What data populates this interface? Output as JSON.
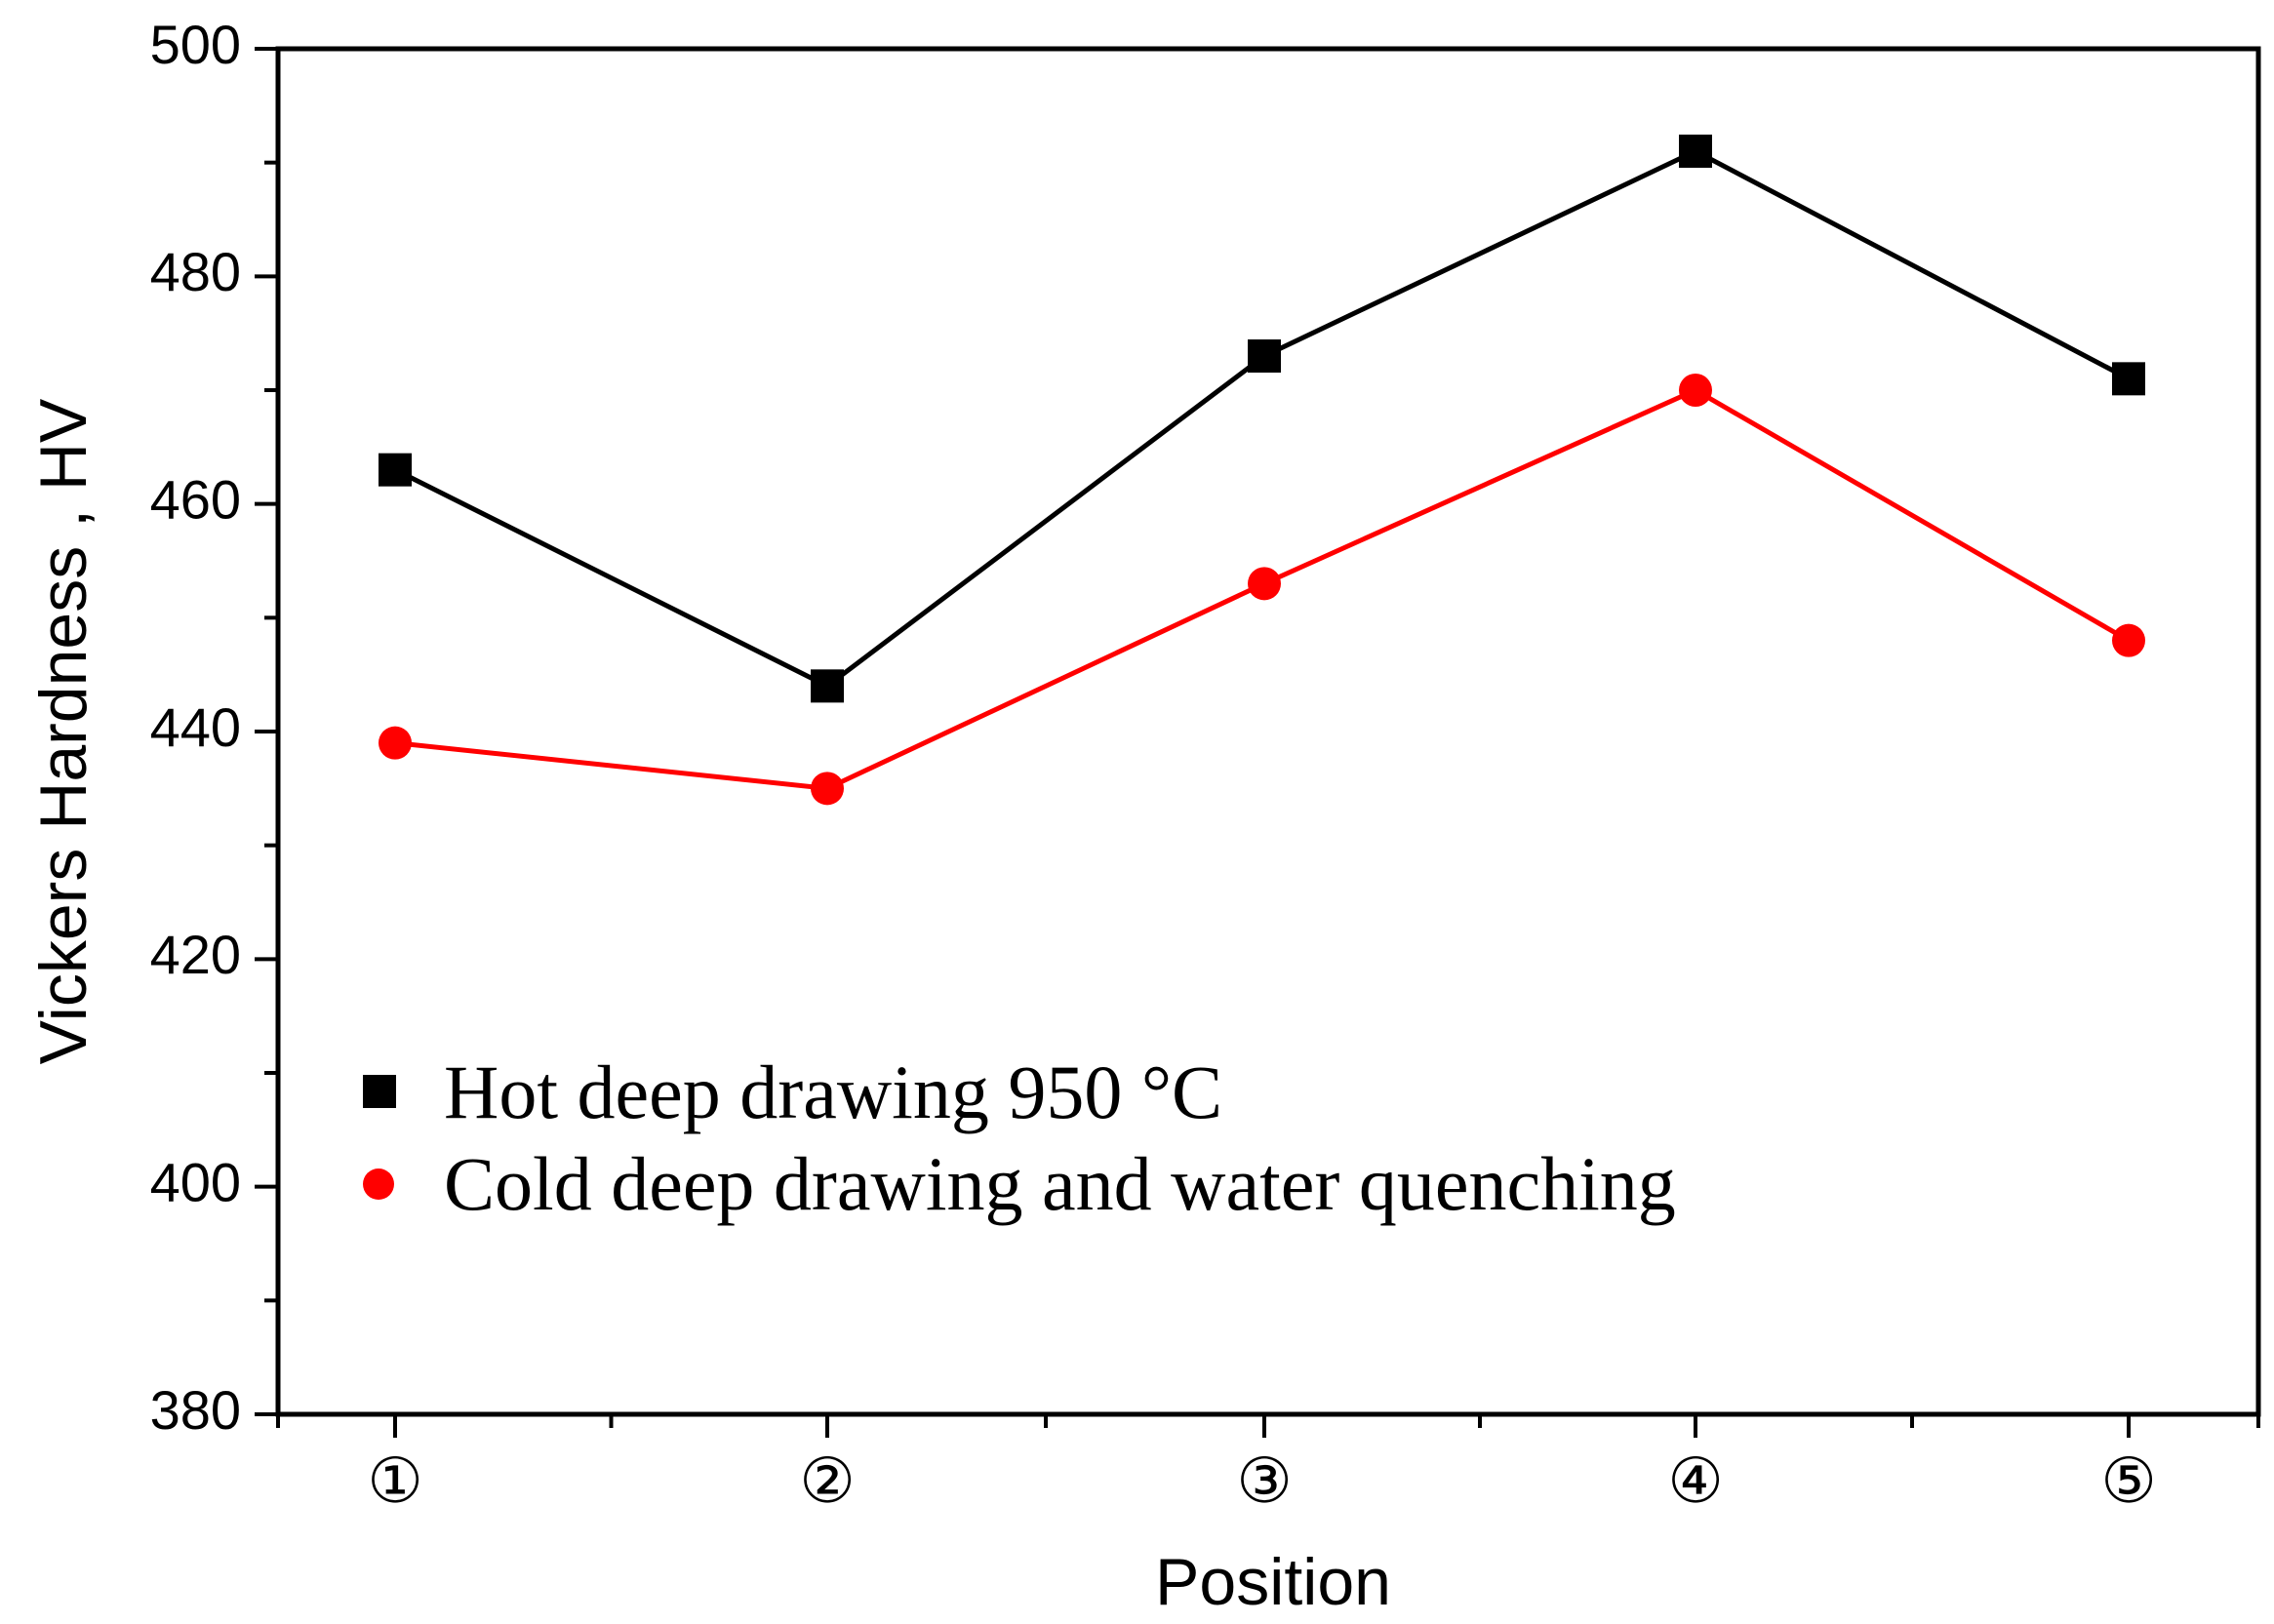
{
  "chart_data": {
    "type": "line",
    "title": "",
    "xlabel": "Position",
    "ylabel": "Vickers Hardness , HV",
    "categories": [
      "①",
      "②",
      "③",
      "④",
      "⑤"
    ],
    "ylim": [
      380,
      500
    ],
    "yticks": [
      500,
      480,
      460,
      440,
      420,
      400,
      380
    ],
    "ytick_labels": [
      "500",
      "480",
      "460",
      "440",
      "420",
      "400",
      "380"
    ],
    "legend_position": "lower-left",
    "series": [
      {
        "name": "Hot deep drawing 950 °C",
        "marker": "square",
        "color": "#000000",
        "values": [
          463,
          444,
          473,
          491,
          471
        ]
      },
      {
        "name": "Cold deep drawing and water quenching",
        "marker": "circle",
        "color": "#ff0000",
        "values": [
          439,
          435,
          453,
          470,
          448
        ]
      }
    ]
  }
}
